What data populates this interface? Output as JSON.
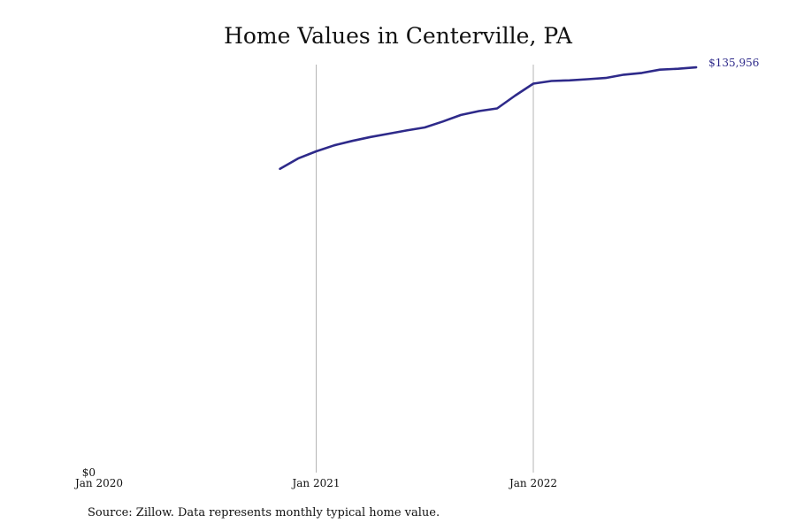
{
  "chart_data": {
    "type": "line",
    "title": "Home Values in Centerville, PA",
    "xlabel": "",
    "ylabel": "",
    "x_ticks": [
      "Jan 2020",
      "Jan 2021",
      "Jan 2022"
    ],
    "y_ticks": [
      "$0"
    ],
    "ylim": [
      0,
      136000
    ],
    "grid": "vertical",
    "end_label": "$135,956",
    "line_color": "#2e2a8a",
    "series": [
      {
        "x": [
          "2020-11",
          "2020-12",
          "2021-01",
          "2021-02",
          "2021-03",
          "2021-04",
          "2021-05",
          "2021-06",
          "2021-07",
          "2021-08",
          "2021-09",
          "2021-10",
          "2021-11",
          "2021-12",
          "2022-01",
          "2022-02",
          "2022-03",
          "2022-04",
          "2022-05",
          "2022-06",
          "2022-07",
          "2022-08",
          "2022-09",
          "2022-10"
        ],
        "values": [
          101900,
          105400,
          107800,
          109800,
          111300,
          112600,
          113700,
          114800,
          115800,
          117800,
          120000,
          121300,
          122200,
          126500,
          130500,
          131400,
          131600,
          132000,
          132400,
          133500,
          134100,
          135200,
          135500,
          135956
        ]
      }
    ]
  },
  "source": "Source: Zillow. Data represents monthly typical home value."
}
